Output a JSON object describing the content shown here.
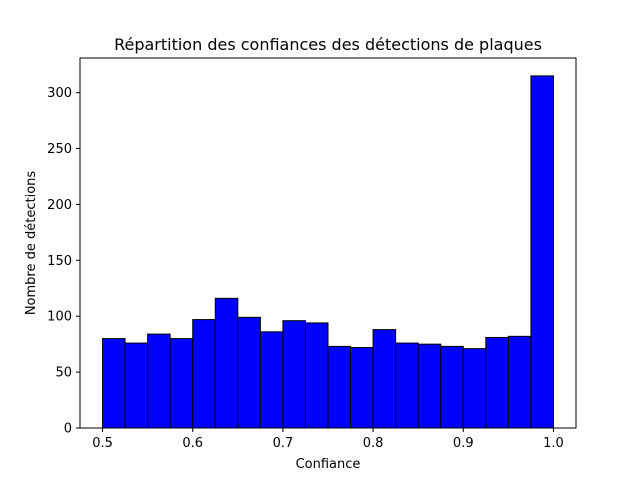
{
  "chart_data": {
    "type": "bar",
    "title": "Répartition des confiances des détections de plaques",
    "xlabel": "Confiance",
    "ylabel": "Nombre de détections",
    "xlim": [
      0.475,
      1.025
    ],
    "ylim": [
      0,
      331
    ],
    "bin_width": 0.025,
    "bins": [
      {
        "start": 0.5,
        "end": 0.525,
        "count": 80
      },
      {
        "start": 0.525,
        "end": 0.55,
        "count": 76
      },
      {
        "start": 0.55,
        "end": 0.575,
        "count": 84
      },
      {
        "start": 0.575,
        "end": 0.6,
        "count": 80
      },
      {
        "start": 0.6,
        "end": 0.625,
        "count": 97
      },
      {
        "start": 0.625,
        "end": 0.65,
        "count": 116
      },
      {
        "start": 0.65,
        "end": 0.675,
        "count": 99
      },
      {
        "start": 0.675,
        "end": 0.7,
        "count": 86
      },
      {
        "start": 0.7,
        "end": 0.725,
        "count": 96
      },
      {
        "start": 0.725,
        "end": 0.75,
        "count": 94
      },
      {
        "start": 0.75,
        "end": 0.775,
        "count": 73
      },
      {
        "start": 0.775,
        "end": 0.8,
        "count": 72
      },
      {
        "start": 0.8,
        "end": 0.825,
        "count": 88
      },
      {
        "start": 0.825,
        "end": 0.85,
        "count": 76
      },
      {
        "start": 0.85,
        "end": 0.875,
        "count": 75
      },
      {
        "start": 0.875,
        "end": 0.9,
        "count": 73
      },
      {
        "start": 0.9,
        "end": 0.925,
        "count": 71
      },
      {
        "start": 0.925,
        "end": 0.95,
        "count": 81
      },
      {
        "start": 0.95,
        "end": 0.975,
        "count": 82
      },
      {
        "start": 0.975,
        "end": 1.0,
        "count": 315
      }
    ],
    "xticks": [
      0.5,
      0.6,
      0.7,
      0.8,
      0.9,
      1.0
    ],
    "xtick_labels": [
      "0.5",
      "0.6",
      "0.7",
      "0.8",
      "0.9",
      "1.0"
    ],
    "yticks": [
      0,
      50,
      100,
      150,
      200,
      250,
      300
    ],
    "ytick_labels": [
      "0",
      "50",
      "100",
      "150",
      "200",
      "250",
      "300"
    ],
    "bar_color": "#0000ff",
    "edge_color": "#000000",
    "grid": false
  }
}
